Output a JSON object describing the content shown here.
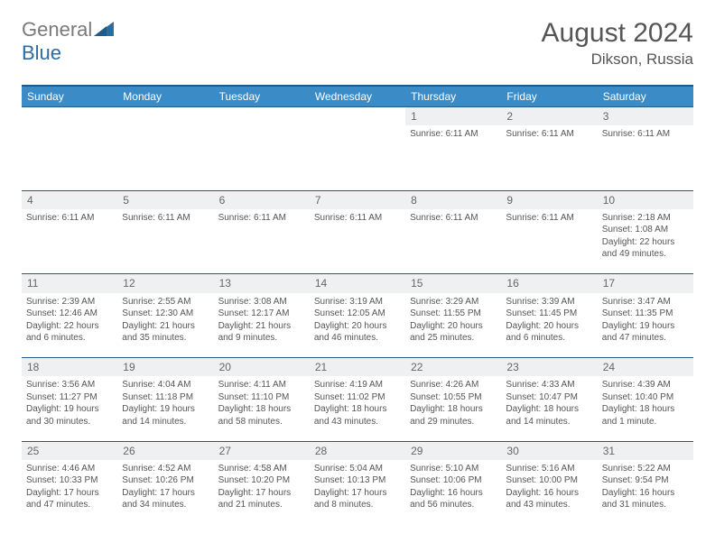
{
  "logo": {
    "word1": "General",
    "word2": "Blue"
  },
  "title": "August 2024",
  "location": "Dikson, Russia",
  "colors": {
    "header_bg": "#3b8bc6",
    "header_border": "#1e5a8a",
    "daynum_bg": "#eef0f2",
    "text": "#555555",
    "logo_gray": "#7a7a7a",
    "logo_blue": "#2b6ca3"
  },
  "weekdays": [
    "Sunday",
    "Monday",
    "Tuesday",
    "Wednesday",
    "Thursday",
    "Friday",
    "Saturday"
  ],
  "weeks": [
    {
      "nums": [
        "",
        "",
        "",
        "",
        "1",
        "2",
        "3"
      ],
      "cells": [
        [],
        [],
        [],
        [],
        [
          "Sunrise: 6:11 AM"
        ],
        [
          "Sunrise: 6:11 AM"
        ],
        [
          "Sunrise: 6:11 AM"
        ]
      ]
    },
    {
      "nums": [
        "4",
        "5",
        "6",
        "7",
        "8",
        "9",
        "10"
      ],
      "cells": [
        [
          "Sunrise: 6:11 AM"
        ],
        [
          "Sunrise: 6:11 AM"
        ],
        [
          "Sunrise: 6:11 AM"
        ],
        [
          "Sunrise: 6:11 AM"
        ],
        [
          "Sunrise: 6:11 AM"
        ],
        [
          "Sunrise: 6:11 AM"
        ],
        [
          "Sunrise: 2:18 AM",
          "Sunset: 1:08 AM",
          "Daylight: 22 hours",
          "and 49 minutes."
        ]
      ]
    },
    {
      "nums": [
        "11",
        "12",
        "13",
        "14",
        "15",
        "16",
        "17"
      ],
      "cells": [
        [
          "Sunrise: 2:39 AM",
          "Sunset: 12:46 AM",
          "Daylight: 22 hours",
          "and 6 minutes."
        ],
        [
          "Sunrise: 2:55 AM",
          "Sunset: 12:30 AM",
          "Daylight: 21 hours",
          "and 35 minutes."
        ],
        [
          "Sunrise: 3:08 AM",
          "Sunset: 12:17 AM",
          "Daylight: 21 hours",
          "and 9 minutes."
        ],
        [
          "Sunrise: 3:19 AM",
          "Sunset: 12:05 AM",
          "Daylight: 20 hours",
          "and 46 minutes."
        ],
        [
          "Sunrise: 3:29 AM",
          "Sunset: 11:55 PM",
          "Daylight: 20 hours",
          "and 25 minutes."
        ],
        [
          "Sunrise: 3:39 AM",
          "Sunset: 11:45 PM",
          "Daylight: 20 hours",
          "and 6 minutes."
        ],
        [
          "Sunrise: 3:47 AM",
          "Sunset: 11:35 PM",
          "Daylight: 19 hours",
          "and 47 minutes."
        ]
      ]
    },
    {
      "nums": [
        "18",
        "19",
        "20",
        "21",
        "22",
        "23",
        "24"
      ],
      "cells": [
        [
          "Sunrise: 3:56 AM",
          "Sunset: 11:27 PM",
          "Daylight: 19 hours",
          "and 30 minutes."
        ],
        [
          "Sunrise: 4:04 AM",
          "Sunset: 11:18 PM",
          "Daylight: 19 hours",
          "and 14 minutes."
        ],
        [
          "Sunrise: 4:11 AM",
          "Sunset: 11:10 PM",
          "Daylight: 18 hours",
          "and 58 minutes."
        ],
        [
          "Sunrise: 4:19 AM",
          "Sunset: 11:02 PM",
          "Daylight: 18 hours",
          "and 43 minutes."
        ],
        [
          "Sunrise: 4:26 AM",
          "Sunset: 10:55 PM",
          "Daylight: 18 hours",
          "and 29 minutes."
        ],
        [
          "Sunrise: 4:33 AM",
          "Sunset: 10:47 PM",
          "Daylight: 18 hours",
          "and 14 minutes."
        ],
        [
          "Sunrise: 4:39 AM",
          "Sunset: 10:40 PM",
          "Daylight: 18 hours",
          "and 1 minute."
        ]
      ]
    },
    {
      "nums": [
        "25",
        "26",
        "27",
        "28",
        "29",
        "30",
        "31"
      ],
      "cells": [
        [
          "Sunrise: 4:46 AM",
          "Sunset: 10:33 PM",
          "Daylight: 17 hours",
          "and 47 minutes."
        ],
        [
          "Sunrise: 4:52 AM",
          "Sunset: 10:26 PM",
          "Daylight: 17 hours",
          "and 34 minutes."
        ],
        [
          "Sunrise: 4:58 AM",
          "Sunset: 10:20 PM",
          "Daylight: 17 hours",
          "and 21 minutes."
        ],
        [
          "Sunrise: 5:04 AM",
          "Sunset: 10:13 PM",
          "Daylight: 17 hours",
          "and 8 minutes."
        ],
        [
          "Sunrise: 5:10 AM",
          "Sunset: 10:06 PM",
          "Daylight: 16 hours",
          "and 56 minutes."
        ],
        [
          "Sunrise: 5:16 AM",
          "Sunset: 10:00 PM",
          "Daylight: 16 hours",
          "and 43 minutes."
        ],
        [
          "Sunrise: 5:22 AM",
          "Sunset: 9:54 PM",
          "Daylight: 16 hours",
          "and 31 minutes."
        ]
      ]
    }
  ]
}
